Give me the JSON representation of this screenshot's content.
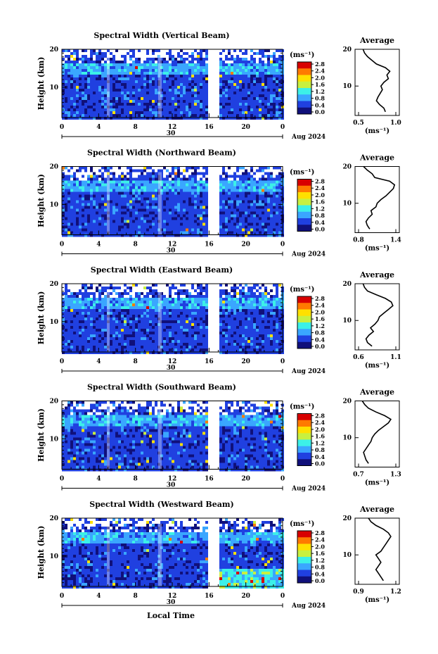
{
  "panels": [
    {
      "title": "Spectral Width (Vertical Beam)",
      "avg_title": "Average",
      "avg_xticks": [
        "0.5",
        "1.0"
      ],
      "avg_range": [
        0.5,
        1.0
      ],
      "profile_key": "vertical"
    },
    {
      "title": "Spectral Width (Northward Beam)",
      "avg_title": "Average",
      "avg_xticks": [
        "0.8",
        "1.4"
      ],
      "avg_range": [
        0.8,
        1.4
      ],
      "profile_key": "northward"
    },
    {
      "title": "Spectral Width (Eastward Beam)",
      "avg_title": "Average",
      "avg_xticks": [
        "0.6",
        "1.1"
      ],
      "avg_range": [
        0.6,
        1.1
      ],
      "profile_key": "eastward"
    },
    {
      "title": "Spectral Width (Southward Beam)",
      "avg_title": "Average",
      "avg_xticks": [
        "0.7",
        "1.3"
      ],
      "avg_range": [
        0.7,
        1.3
      ],
      "profile_key": "southward"
    },
    {
      "title": "Spectral Width (Westward Beam)",
      "avg_title": "Average",
      "avg_xticks": [
        "0.9",
        "1.2"
      ],
      "avg_range": [
        0.9,
        1.2
      ],
      "profile_key": "westward"
    }
  ],
  "common": {
    "ylabel": "Height (km)",
    "yticks": [
      "20",
      "10"
    ],
    "xticks": [
      "0",
      "4",
      "8",
      "12",
      "16",
      "20",
      "0"
    ],
    "date_day": "30",
    "date_label": "Aug 2024",
    "colorbar_unit": "(ms⁻¹)",
    "avg_unit": "(ms⁻¹)",
    "colorbar_ticks": [
      "2.8",
      "2.4",
      "2.0",
      "1.6",
      "1.2",
      "0.8",
      "0.4",
      "0.0"
    ],
    "xlabel": "Local Time"
  },
  "chart_data": {
    "type": "heatmap",
    "x_axis": {
      "label": "Local Time",
      "range_hours": [
        0,
        24
      ],
      "ticks": [
        0,
        4,
        8,
        12,
        16,
        20,
        24
      ]
    },
    "y_axis": {
      "label": "Height (km)",
      "range_km": [
        2,
        20
      ],
      "ticks": [
        10,
        20
      ]
    },
    "color_scale": {
      "min": 0.0,
      "max": 2.8,
      "unit": "ms-1",
      "colors": [
        "#10107a",
        "#2040e0",
        "#3aa6ff",
        "#3cf0e8",
        "#c8f040",
        "#ffe000",
        "#ff7a00",
        "#d80000"
      ]
    },
    "data_gap_hours": [
      16.0,
      17.0
    ],
    "profiles": {
      "vertical": {
        "height_km": [
          3,
          4,
          5,
          6,
          7,
          8,
          9,
          10,
          11,
          12,
          13,
          14,
          15,
          16,
          17,
          18,
          19,
          20
        ],
        "value": [
          0.86,
          0.84,
          0.78,
          0.74,
          0.76,
          0.79,
          0.82,
          0.8,
          0.84,
          0.9,
          0.88,
          0.92,
          0.86,
          0.74,
          0.68,
          0.62,
          0.58,
          0.56
        ]
      },
      "northward": {
        "height_km": [
          3,
          4,
          5,
          6,
          7,
          8,
          9,
          10,
          11,
          12,
          13,
          14,
          15,
          16,
          17,
          18,
          19,
          20
        ],
        "value": [
          0.98,
          0.94,
          0.92,
          0.96,
          1.02,
          1.0,
          1.08,
          1.1,
          1.16,
          1.24,
          1.3,
          1.36,
          1.38,
          1.3,
          1.06,
          1.02,
          0.94,
          0.88
        ]
      },
      "eastward": {
        "height_km": [
          3,
          4,
          5,
          6,
          7,
          8,
          9,
          10,
          11,
          12,
          13,
          14,
          15,
          16,
          17,
          18,
          19,
          20
        ],
        "value": [
          0.78,
          0.72,
          0.7,
          0.74,
          0.8,
          0.76,
          0.82,
          0.86,
          0.88,
          0.94,
          1.0,
          1.06,
          1.04,
          0.96,
          0.84,
          0.72,
          0.68,
          0.66
        ]
      },
      "southward": {
        "height_km": [
          3,
          4,
          5,
          6,
          7,
          8,
          9,
          10,
          11,
          12,
          13,
          14,
          15,
          16,
          17,
          18,
          19,
          20
        ],
        "value": [
          0.86,
          0.82,
          0.8,
          0.78,
          0.82,
          0.86,
          0.9,
          0.92,
          0.96,
          1.02,
          1.1,
          1.18,
          1.22,
          1.12,
          0.98,
          0.86,
          0.8,
          0.76
        ]
      },
      "westward": {
        "height_km": [
          3,
          4,
          5,
          6,
          7,
          8,
          9,
          10,
          11,
          12,
          13,
          14,
          15,
          16,
          17,
          18,
          19,
          20
        ],
        "value": [
          1.1,
          1.08,
          1.06,
          1.04,
          1.06,
          1.08,
          1.06,
          1.04,
          1.08,
          1.1,
          1.12,
          1.14,
          1.16,
          1.14,
          1.1,
          1.04,
          1.0,
          0.98
        ]
      }
    }
  }
}
